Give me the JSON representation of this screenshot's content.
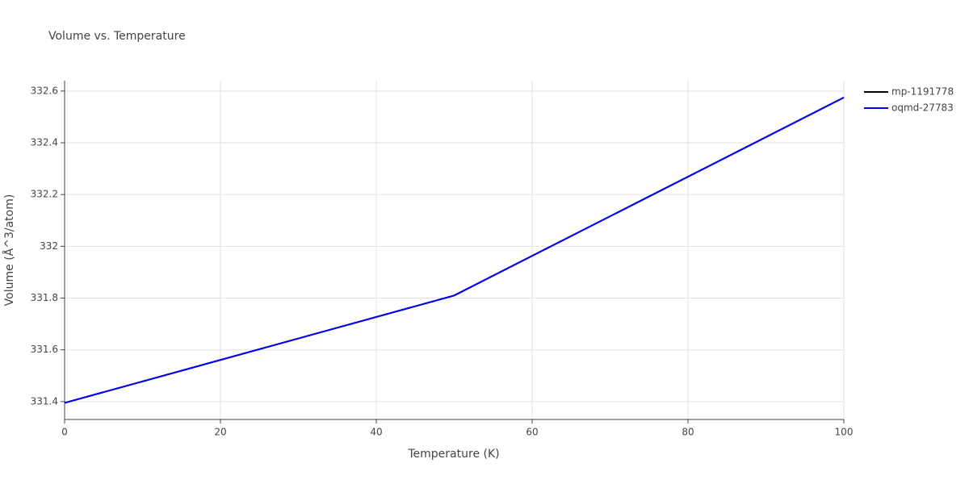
{
  "chart_data": {
    "type": "line",
    "title": "Volume vs. Temperature",
    "x_label": "Temperature (K)",
    "y_label": "Volume (Å^3/atom)",
    "x": [
      0,
      50,
      100
    ],
    "series": [
      {
        "name": "mp-1191778",
        "color": "#000000",
        "values": [
          331.395,
          331.81,
          332.575
        ]
      },
      {
        "name": "oqmd-27783",
        "color": "#0000ff",
        "values": [
          331.395,
          331.81,
          332.575
        ]
      }
    ],
    "xlim": [
      0,
      100
    ],
    "xticks": [
      0,
      20,
      40,
      60,
      80,
      100
    ],
    "ylim": [
      331.331,
      332.64
    ],
    "yticks": [
      331.4,
      331.6,
      331.8,
      332,
      332.2,
      332.4,
      332.6
    ],
    "grid": true,
    "legend": "top-right"
  }
}
